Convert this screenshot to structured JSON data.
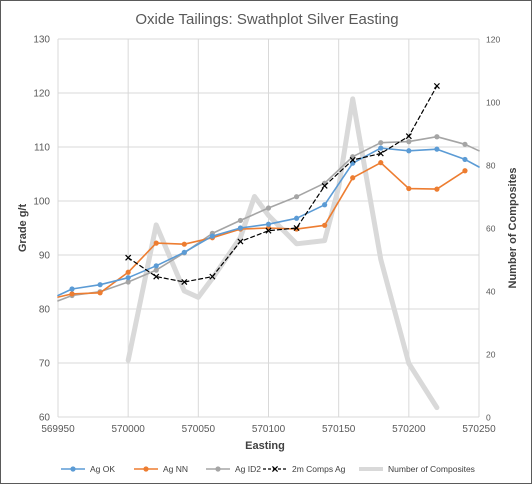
{
  "chart_data": {
    "type": "line",
    "title": "Oxide Tailings: Swathplot Silver Easting",
    "xlabel": "Easting",
    "ylabel": "Grade g/t",
    "y2label": "Number of Composites",
    "xlim": [
      569950,
      570250
    ],
    "ylim": [
      60,
      130
    ],
    "y2lim": [
      0,
      120
    ],
    "x_ticks": [
      "569950",
      "570000",
      "570050",
      "570100",
      "570150",
      "570200",
      "570250"
    ],
    "y_ticks": [
      "60",
      "70",
      "80",
      "90",
      "100",
      "110",
      "120",
      "130"
    ],
    "y2_ticks": [
      "0",
      "20",
      "40",
      "60",
      "80",
      "100",
      "120"
    ],
    "grid": true,
    "legend_position": "bottom",
    "series": [
      {
        "name": "Ag OK",
        "color": "#5b9bd5",
        "axis": "left",
        "style": "solid-marker",
        "x": [
          569950,
          569960,
          569980,
          570000,
          570020,
          570040,
          570060,
          570080,
          570100,
          570120,
          570140,
          570160,
          570180,
          570200,
          570220,
          570240,
          570250
        ],
        "y": [
          82.5,
          83.7,
          84.5,
          85.8,
          88.0,
          90.5,
          93.5,
          95.0,
          95.7,
          96.8,
          99.3,
          107.0,
          109.8,
          109.3,
          109.6,
          107.7,
          106.3
        ]
      },
      {
        "name": "Ag NN",
        "color": "#ed7d31",
        "axis": "left",
        "style": "solid-marker",
        "x": [
          569950,
          569960,
          569980,
          570000,
          570020,
          570040,
          570060,
          570080,
          570100,
          570120,
          570140,
          570160,
          570180,
          570200,
          570220,
          570240
        ],
        "y": [
          82.2,
          82.8,
          83.0,
          86.8,
          92.2,
          92.0,
          93.2,
          94.8,
          95.0,
          94.8,
          95.5,
          104.3,
          107.1,
          102.3,
          102.2,
          105.6
        ]
      },
      {
        "name": "Ag ID2",
        "color": "#a5a5a5",
        "axis": "left",
        "style": "solid-marker",
        "x": [
          569950,
          569960,
          569980,
          570000,
          570020,
          570040,
          570060,
          570080,
          570100,
          570120,
          570140,
          570160,
          570180,
          570200,
          570220,
          570240,
          570250
        ],
        "y": [
          81.5,
          82.5,
          83.2,
          85.0,
          87.2,
          90.4,
          94.0,
          96.4,
          98.7,
          100.8,
          103.3,
          108.2,
          110.8,
          111.0,
          111.9,
          110.5,
          109.3
        ]
      },
      {
        "name": "2m Comps Ag",
        "color": "#000000",
        "axis": "left",
        "style": "dashed-x",
        "x": [
          570000,
          570020,
          570040,
          570060,
          570080,
          570100,
          570120,
          570140,
          570160,
          570180,
          570200,
          570220
        ],
        "y": [
          89.5,
          86.0,
          85.0,
          86.0,
          92.5,
          94.5,
          95.0,
          102.8,
          107.6,
          108.8,
          112.0,
          121.3
        ]
      },
      {
        "name": "Number of Composites",
        "color": "#d9d9d9",
        "axis": "right",
        "style": "thick-line",
        "x": [
          570000,
          570020,
          570040,
          570050,
          570060,
          570080,
          570090,
          570100,
          570120,
          570140,
          570150,
          570160,
          570180,
          570200,
          570220
        ],
        "y": [
          18,
          61,
          40,
          38,
          44,
          57,
          70,
          64,
          55,
          56,
          73,
          101,
          50,
          17,
          3
        ]
      }
    ]
  }
}
